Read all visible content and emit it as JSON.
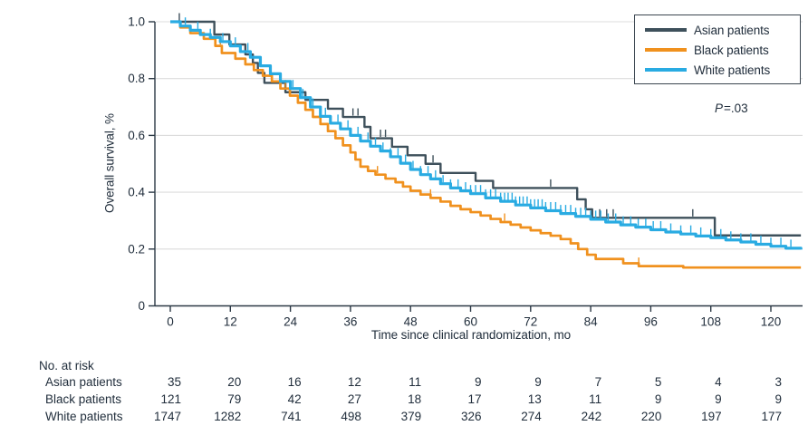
{
  "figure": {
    "p_value": {
      "label": "P",
      "text": "=.03"
    }
  },
  "colors": {
    "text": "#212e3c",
    "axis": "#2b3845",
    "gridline": "#dcdcdc",
    "asian": "#3e505b",
    "black": "#f0911e",
    "white": "#29abe2"
  },
  "legend": {
    "items": [
      {
        "label": "Asian patients",
        "color": "#3e505b"
      },
      {
        "label": "Black patients",
        "color": "#f0911e"
      },
      {
        "label": "White patients",
        "color": "#29abe2"
      }
    ]
  },
  "chart_data": {
    "type": "line",
    "variant": "kaplan_meier_step",
    "title": "",
    "xlabel": "Time since clinical randomization, mo",
    "ylabel": "Overall survival, %",
    "xlim": [
      0,
      126
    ],
    "ylim": [
      0,
      1.0
    ],
    "x_ticks": [
      0,
      12,
      24,
      36,
      48,
      60,
      72,
      84,
      96,
      108,
      120
    ],
    "y_ticks": [
      0,
      0.2,
      0.4,
      0.6,
      0.8,
      1.0
    ],
    "y_tick_labels": [
      "0",
      "0.2",
      "0.4",
      "0.6",
      "0.8",
      "1.0"
    ],
    "grid": "horizontal-light",
    "legend_position": "top-right",
    "annotation": "P=.03",
    "series": [
      {
        "name": "Asian patients",
        "color": "#3e505b",
        "points": [
          [
            0,
            1.0
          ],
          [
            8.8,
            0.955
          ],
          [
            11.8,
            0.92
          ],
          [
            15,
            0.885
          ],
          [
            16.5,
            0.855
          ],
          [
            17.5,
            0.82
          ],
          [
            18.8,
            0.785
          ],
          [
            23,
            0.752
          ],
          [
            27,
            0.725
          ],
          [
            31.5,
            0.694
          ],
          [
            34.5,
            0.665
          ],
          [
            38.8,
            0.63
          ],
          [
            40,
            0.59
          ],
          [
            44.3,
            0.56
          ],
          [
            47.4,
            0.53
          ],
          [
            51,
            0.5
          ],
          [
            54,
            0.468
          ],
          [
            61,
            0.44
          ],
          [
            64.5,
            0.415
          ],
          [
            81.3,
            0.375
          ],
          [
            83,
            0.34
          ],
          [
            84.3,
            0.31
          ],
          [
            108.8,
            0.248
          ],
          [
            126,
            0.248
          ]
        ],
        "censor_times": [
          1.8,
          36.5,
          37.5,
          42,
          43,
          52.5,
          76,
          85.8,
          87.2,
          88.5,
          104.4
        ]
      },
      {
        "name": "Black patients",
        "color": "#f0911e",
        "points": [
          [
            0,
            1.0
          ],
          [
            2,
            0.98
          ],
          [
            4,
            0.96
          ],
          [
            6.7,
            0.94
          ],
          [
            9,
            0.915
          ],
          [
            10.3,
            0.89
          ],
          [
            13,
            0.87
          ],
          [
            15,
            0.85
          ],
          [
            16.7,
            0.83
          ],
          [
            18.5,
            0.81
          ],
          [
            20.3,
            0.79
          ],
          [
            22,
            0.765
          ],
          [
            23.9,
            0.74
          ],
          [
            25.5,
            0.715
          ],
          [
            27,
            0.69
          ],
          [
            28.5,
            0.665
          ],
          [
            30,
            0.64
          ],
          [
            31.5,
            0.615
          ],
          [
            33,
            0.59
          ],
          [
            34.5,
            0.565
          ],
          [
            36,
            0.54
          ],
          [
            37,
            0.515
          ],
          [
            38,
            0.49
          ],
          [
            39.5,
            0.475
          ],
          [
            41,
            0.462
          ],
          [
            43,
            0.448
          ],
          [
            45,
            0.435
          ],
          [
            46.5,
            0.42
          ],
          [
            48,
            0.405
          ],
          [
            50,
            0.392
          ],
          [
            52,
            0.38
          ],
          [
            54,
            0.367
          ],
          [
            56,
            0.352
          ],
          [
            58,
            0.34
          ],
          [
            60,
            0.33
          ],
          [
            62,
            0.318
          ],
          [
            64,
            0.306
          ],
          [
            66,
            0.295
          ],
          [
            68,
            0.286
          ],
          [
            70,
            0.276
          ],
          [
            72,
            0.266
          ],
          [
            74,
            0.256
          ],
          [
            76,
            0.247
          ],
          [
            78,
            0.235
          ],
          [
            80,
            0.22
          ],
          [
            81.5,
            0.2
          ],
          [
            83.3,
            0.18
          ],
          [
            85,
            0.165
          ],
          [
            90.5,
            0.15
          ],
          [
            93.6,
            0.14
          ],
          [
            102.5,
            0.135
          ],
          [
            126,
            0.135
          ]
        ],
        "censor_times": [
          10,
          23,
          41.4,
          52,
          66.8,
          93.6
        ]
      },
      {
        "name": "White patients",
        "color": "#29abe2",
        "points": [
          [
            0,
            1.0
          ],
          [
            2,
            0.985
          ],
          [
            4,
            0.97
          ],
          [
            6,
            0.955
          ],
          [
            8,
            0.945
          ],
          [
            10,
            0.93
          ],
          [
            12,
            0.915
          ],
          [
            14,
            0.895
          ],
          [
            16,
            0.875
          ],
          [
            18,
            0.845
          ],
          [
            20,
            0.817
          ],
          [
            22,
            0.79
          ],
          [
            24,
            0.765
          ],
          [
            26,
            0.733
          ],
          [
            28,
            0.7
          ],
          [
            30,
            0.667
          ],
          [
            32,
            0.643
          ],
          [
            34,
            0.623
          ],
          [
            36,
            0.6
          ],
          [
            38,
            0.58
          ],
          [
            40,
            0.562
          ],
          [
            42,
            0.545
          ],
          [
            44,
            0.525
          ],
          [
            46,
            0.502
          ],
          [
            48,
            0.48
          ],
          [
            50,
            0.462
          ],
          [
            52,
            0.447
          ],
          [
            54,
            0.43
          ],
          [
            56,
            0.415
          ],
          [
            58,
            0.405
          ],
          [
            60,
            0.395
          ],
          [
            63,
            0.38
          ],
          [
            66,
            0.368
          ],
          [
            69,
            0.355
          ],
          [
            72,
            0.345
          ],
          [
            75,
            0.335
          ],
          [
            78,
            0.325
          ],
          [
            81,
            0.315
          ],
          [
            84,
            0.305
          ],
          [
            87,
            0.295
          ],
          [
            90,
            0.285
          ],
          [
            93,
            0.277
          ],
          [
            96,
            0.268
          ],
          [
            99,
            0.26
          ],
          [
            102,
            0.253
          ],
          [
            105,
            0.246
          ],
          [
            108,
            0.24
          ],
          [
            111,
            0.232
          ],
          [
            114,
            0.225
          ],
          [
            117,
            0.217
          ],
          [
            120,
            0.21
          ],
          [
            123,
            0.203
          ],
          [
            126,
            0.198
          ]
        ],
        "censor_times": [
          3,
          5.5,
          8,
          10.5,
          13,
          15.5,
          18,
          20,
          22,
          24.5,
          26.5,
          28.5,
          31,
          33.5,
          35.5,
          37.5,
          39.5,
          41,
          42.5,
          44,
          45.5,
          47,
          48.5,
          50,
          51.5,
          53,
          54.5,
          56,
          57.5,
          59,
          60,
          61,
          62,
          63,
          64,
          65,
          66,
          66.8,
          67.5,
          68.3,
          69,
          69.8,
          70.5,
          71.3,
          72,
          72.8,
          73.5,
          74.3,
          75,
          76,
          77,
          78,
          79,
          80,
          81,
          82,
          83,
          84,
          85,
          86,
          87.5,
          89,
          90.5,
          92,
          93.5,
          95,
          96.5,
          98,
          100,
          102,
          104,
          106,
          108,
          110,
          112,
          114,
          116,
          118,
          120,
          122,
          124
        ]
      }
    ]
  },
  "risk_table": {
    "title": "No. at risk",
    "times": [
      0,
      12,
      24,
      36,
      48,
      60,
      72,
      84,
      96,
      108,
      120
    ],
    "rows": [
      {
        "label": "Asian patients",
        "values": [
          35,
          20,
          16,
          12,
          11,
          9,
          9,
          7,
          5,
          4,
          3
        ]
      },
      {
        "label": "Black patients",
        "values": [
          121,
          79,
          42,
          27,
          18,
          17,
          13,
          11,
          9,
          9,
          9
        ]
      },
      {
        "label": "White patients",
        "values": [
          1747,
          1282,
          741,
          498,
          379,
          326,
          274,
          242,
          220,
          197,
          177
        ]
      }
    ]
  }
}
